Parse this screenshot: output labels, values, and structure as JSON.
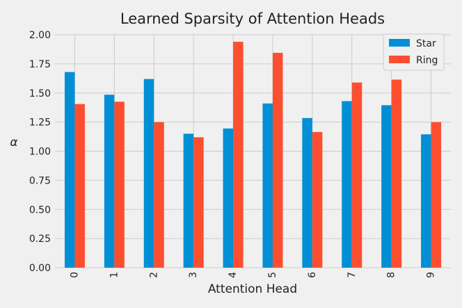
{
  "chart_data": {
    "type": "bar",
    "title": "Learned Sparsity of Attention Heads",
    "xlabel": "Attention Head",
    "ylabel": "α",
    "categories": [
      "0",
      "1",
      "2",
      "3",
      "4",
      "5",
      "6",
      "7",
      "8",
      "9"
    ],
    "series": [
      {
        "name": "Star",
        "color": "#008fd5",
        "values": [
          1.68,
          1.485,
          1.62,
          1.15,
          1.195,
          1.41,
          1.285,
          1.43,
          1.395,
          1.145
        ]
      },
      {
        "name": "Ring",
        "color": "#fc4f30",
        "values": [
          1.405,
          1.425,
          1.25,
          1.12,
          1.94,
          1.845,
          1.165,
          1.59,
          1.615,
          1.25
        ]
      }
    ],
    "ylim": [
      0,
      2
    ],
    "yticks": [
      "0.00",
      "0.25",
      "0.50",
      "0.75",
      "1.00",
      "1.25",
      "1.50",
      "1.75",
      "2.00"
    ],
    "grid": true,
    "legend_position": "top-right"
  }
}
